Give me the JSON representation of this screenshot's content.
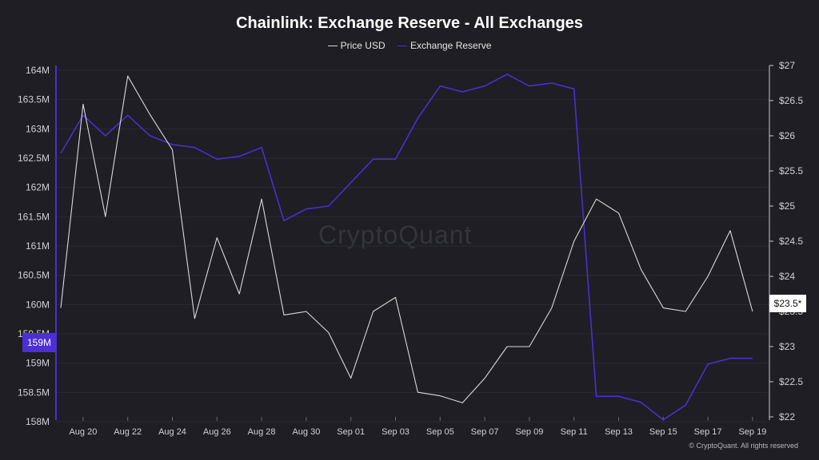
{
  "chart_data": {
    "type": "line",
    "title": "Chainlink: Exchange Reserve - All Exchanges",
    "legend": [
      "Price USD",
      "Exchange Reserve"
    ],
    "colors": {
      "price": "#d9d9d9",
      "reserve": "#4a2fd0",
      "background": "#1e1e24"
    },
    "x_tick_labels": [
      "Aug 20",
      "Aug 22",
      "Aug 24",
      "Aug 26",
      "Aug 28",
      "Aug 30",
      "Sep 01",
      "Sep 03",
      "Sep 05",
      "Sep 07",
      "Sep 09",
      "Sep 11",
      "Sep 13",
      "Sep 15",
      "Sep 17",
      "Sep 19"
    ],
    "x": [
      "Aug 19",
      "Aug 20",
      "Aug 21",
      "Aug 22",
      "Aug 23",
      "Aug 24",
      "Aug 25",
      "Aug 26",
      "Aug 27",
      "Aug 28",
      "Aug 29",
      "Aug 30",
      "Aug 31",
      "Sep 01",
      "Sep 02",
      "Sep 03",
      "Sep 04",
      "Sep 05",
      "Sep 06",
      "Sep 07",
      "Sep 08",
      "Sep 09",
      "Sep 10",
      "Sep 11",
      "Sep 12",
      "Sep 13",
      "Sep 14",
      "Sep 15",
      "Sep 16",
      "Sep 17",
      "Sep 18",
      "Sep 19"
    ],
    "series": [
      {
        "name": "Exchange Reserve",
        "axis": "left",
        "values": [
          162.5,
          163.15,
          162.8,
          163.15,
          162.8,
          162.65,
          162.6,
          162.4,
          162.45,
          162.6,
          161.35,
          161.55,
          161.6,
          162.0,
          162.4,
          162.4,
          163.1,
          163.65,
          163.55,
          163.65,
          163.85,
          163.65,
          163.7,
          163.6,
          158.35,
          158.35,
          158.25,
          157.95,
          158.2,
          158.9,
          159.0,
          159.0
        ]
      },
      {
        "name": "Price USD",
        "axis": "right",
        "values": [
          23.55,
          26.45,
          24.85,
          26.85,
          26.3,
          25.8,
          23.4,
          24.55,
          23.75,
          25.1,
          23.45,
          23.5,
          23.2,
          22.55,
          23.5,
          23.7,
          22.35,
          22.3,
          22.2,
          22.55,
          23.0,
          23.0,
          23.55,
          24.5,
          25.1,
          24.9,
          24.1,
          23.55,
          23.5,
          24.0,
          24.65,
          23.5
        ]
      }
    ],
    "y_left": {
      "ylim": [
        158,
        164
      ],
      "tick_labels": [
        "164M",
        "163.5M",
        "163M",
        "162.5M",
        "162M",
        "161.5M",
        "161M",
        "160.5M",
        "160M",
        "159.5M",
        "159M",
        "158.5M",
        "158M"
      ],
      "current_value_label": "159M"
    },
    "y_right": {
      "ylim": [
        22,
        27
      ],
      "tick_labels": [
        "$27",
        "$26.5",
        "$26",
        "$25.5",
        "$25",
        "$24.5",
        "$24",
        "$23.5",
        "$23",
        "$22.5",
        "$22"
      ],
      "current_value_label": "$23.5*"
    },
    "watermark": "CryptoQuant",
    "copyright": "© CryptoQuant. All rights reserved"
  }
}
